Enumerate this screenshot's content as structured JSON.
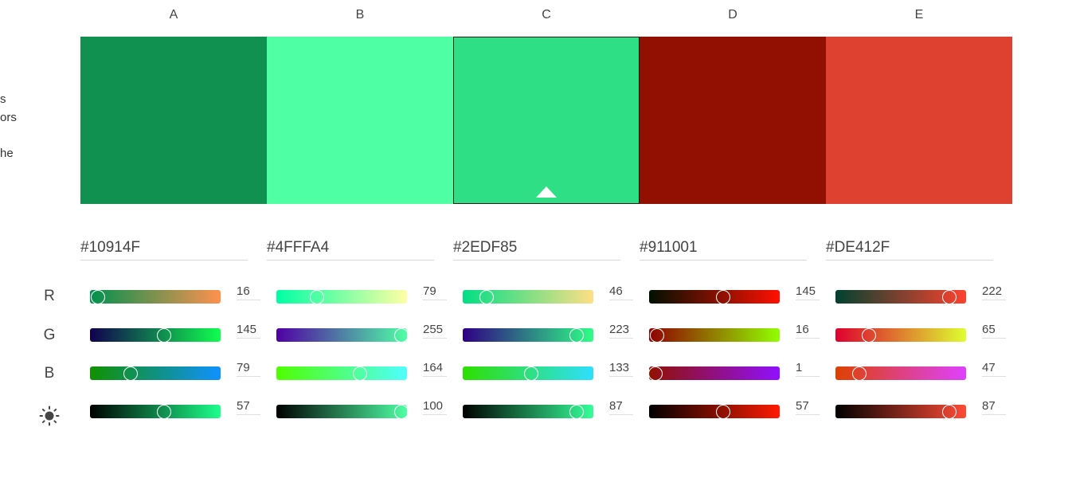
{
  "sidebar_fragments": [
    "s",
    "ors",
    "he"
  ],
  "row_labels": [
    "R",
    "G",
    "B"
  ],
  "brightness_icon": "sun-icon",
  "columns": [
    {
      "letter": "A",
      "hex": "#10914F",
      "color": "#10914F",
      "selected": false,
      "r": 16,
      "g": 145,
      "b": 79,
      "brightness": 57,
      "gradients": {
        "r": [
          "#00914F",
          "#FF914F"
        ],
        "g": [
          "#10004F",
          "#10FF4F"
        ],
        "b": [
          "#109100",
          "#1091FF"
        ],
        "brightness": [
          "#000000",
          "#1CFF8B"
        ]
      }
    },
    {
      "letter": "B",
      "hex": "#4FFFA4",
      "color": "#4FFFA4",
      "selected": false,
      "r": 79,
      "g": 255,
      "b": 164,
      "brightness": 100,
      "gradients": {
        "r": [
          "#00FFA4",
          "#FFFFA4"
        ],
        "g": [
          "#4F00A4",
          "#4FFFA4"
        ],
        "b": [
          "#4FFF00",
          "#4FFFFF"
        ],
        "brightness": [
          "#000000",
          "#4FFFA4"
        ]
      }
    },
    {
      "letter": "C",
      "hex": "#2EDF85",
      "color": "#2EDF85",
      "selected": true,
      "r": 46,
      "g": 223,
      "b": 133,
      "brightness": 87,
      "gradients": {
        "r": [
          "#00DF85",
          "#FFDF85"
        ],
        "g": [
          "#2E0085",
          "#2EFF85"
        ],
        "b": [
          "#2EDF00",
          "#2EDFFF"
        ],
        "brightness": [
          "#000000",
          "#35FF98"
        ]
      }
    },
    {
      "letter": "D",
      "hex": "#911001",
      "color": "#911001",
      "selected": false,
      "r": 145,
      "g": 16,
      "b": 1,
      "brightness": 57,
      "gradients": {
        "r": [
          "#001001",
          "#FF1001"
        ],
        "g": [
          "#910001",
          "#91FF01"
        ],
        "b": [
          "#911000",
          "#9110FF"
        ],
        "brightness": [
          "#000000",
          "#FF1C02"
        ]
      }
    },
    {
      "letter": "E",
      "hex": "#DE412F",
      "color": "#DE412F",
      "selected": false,
      "r": 222,
      "g": 65,
      "b": 47,
      "brightness": 87,
      "gradients": {
        "r": [
          "#00412F",
          "#FF412F"
        ],
        "g": [
          "#DE002F",
          "#DEFF2F"
        ],
        "b": [
          "#DE4100",
          "#DE41FF"
        ],
        "brightness": [
          "#000000",
          "#FF4B36"
        ]
      }
    }
  ]
}
